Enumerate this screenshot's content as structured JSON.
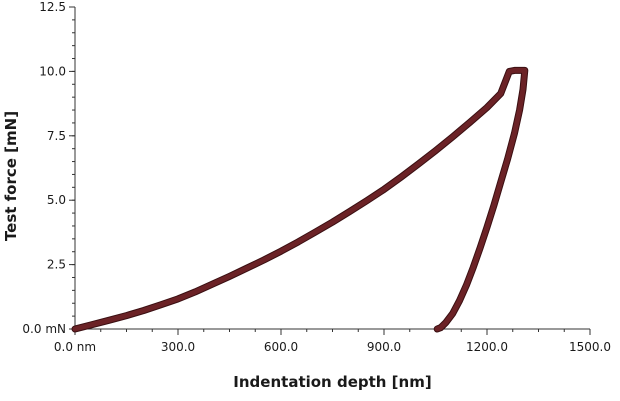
{
  "chart_data": {
    "type": "line",
    "xlabel": "Indentation depth [nm]",
    "ylabel": "Test force [mN]",
    "xlim": [
      0,
      1500
    ],
    "ylim": [
      0,
      12.5
    ],
    "grid": false,
    "x_ticks": [
      {
        "value": 0,
        "label": "0.0 nm"
      },
      {
        "value": 300,
        "label": "300.0"
      },
      {
        "value": 600,
        "label": "600.0"
      },
      {
        "value": 900,
        "label": "900.0"
      },
      {
        "value": 1200,
        "label": "1200.0"
      },
      {
        "value": 1500,
        "label": "1500.0"
      }
    ],
    "y_ticks": [
      {
        "value": 0,
        "label": "0.0 mN"
      },
      {
        "value": 2.5,
        "label": "2.5"
      },
      {
        "value": 5.0,
        "label": "5.0"
      },
      {
        "value": 7.5,
        "label": "7.5"
      },
      {
        "value": 10.0,
        "label": "10.0"
      },
      {
        "value": 12.5,
        "label": "12.5"
      }
    ],
    "x_minor_step": 75,
    "y_minor_step": 0.5,
    "series": [
      {
        "color": "#6b2226",
        "x": [
          0,
          50,
          100,
          150,
          200,
          250,
          300,
          350,
          400,
          450,
          500,
          550,
          600,
          650,
          700,
          750,
          800,
          850,
          900,
          950,
          1000,
          1050,
          1100,
          1150,
          1200,
          1240,
          1265,
          1280,
          1300,
          1310,
          1305,
          1295,
          1280,
          1260,
          1240,
          1220,
          1200,
          1180,
          1160,
          1140,
          1120,
          1100,
          1080,
          1065,
          1055
        ],
        "y": [
          0,
          0.17,
          0.34,
          0.52,
          0.72,
          0.94,
          1.17,
          1.44,
          1.74,
          2.04,
          2.36,
          2.68,
          3.02,
          3.38,
          3.76,
          4.15,
          4.56,
          4.98,
          5.42,
          5.9,
          6.4,
          6.92,
          7.46,
          8.02,
          8.6,
          9.14,
          10.0,
          10.04,
          10.04,
          10.04,
          9.3,
          8.5,
          7.6,
          6.6,
          5.7,
          4.8,
          3.95,
          3.15,
          2.4,
          1.7,
          1.1,
          0.6,
          0.25,
          0.05,
          0
        ]
      }
    ]
  }
}
